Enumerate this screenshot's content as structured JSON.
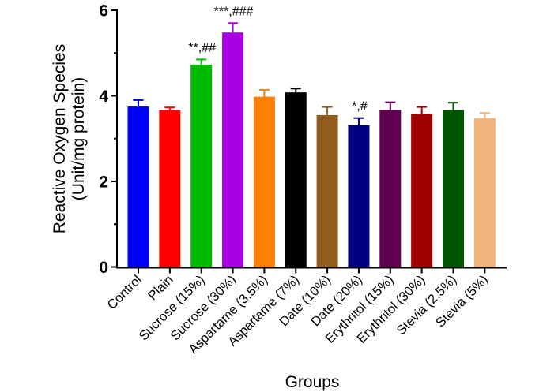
{
  "chart_data": {
    "type": "bar",
    "title": "",
    "xlabel": "Groups",
    "ylabel": [
      "Reactive Oxygen Species",
      "(Unit/mg protein)"
    ],
    "ylim": [
      0,
      6
    ],
    "yticks": [
      0,
      2,
      4,
      6
    ],
    "yminor_ticks": [
      1,
      3,
      5
    ],
    "grid": false,
    "legend": "none",
    "categories": [
      "Control",
      "Plain",
      "Sucrose (15%)",
      "Sucrose (30%)",
      "Aspartame (3.5%)",
      "Aspartame (7%)",
      "Date (10%)",
      "Date (20%)",
      "Erythritol (15%)",
      "Erythritol (30%)",
      "Stevia (2.5%)",
      "Stevia (5%)"
    ],
    "values": [
      3.75,
      3.67,
      4.73,
      5.48,
      3.98,
      4.08,
      3.55,
      3.31,
      3.67,
      3.58,
      3.67,
      3.48
    ],
    "error_upper": [
      3.9,
      3.73,
      4.85,
      5.7,
      4.14,
      4.17,
      3.74,
      3.48,
      3.85,
      3.74,
      3.84,
      3.6
    ],
    "colors": [
      "#0000FF",
      "#FF0000",
      "#00BB00",
      "#A800E0",
      "#FF8000",
      "#000000",
      "#8F5E1F",
      "#000080",
      "#600050",
      "#A00000",
      "#005500",
      "#F0B47C"
    ],
    "annotations": [
      "",
      "",
      "**,##",
      "***,###",
      "",
      "",
      "",
      "*,#",
      "",
      "",
      "",
      ""
    ]
  }
}
